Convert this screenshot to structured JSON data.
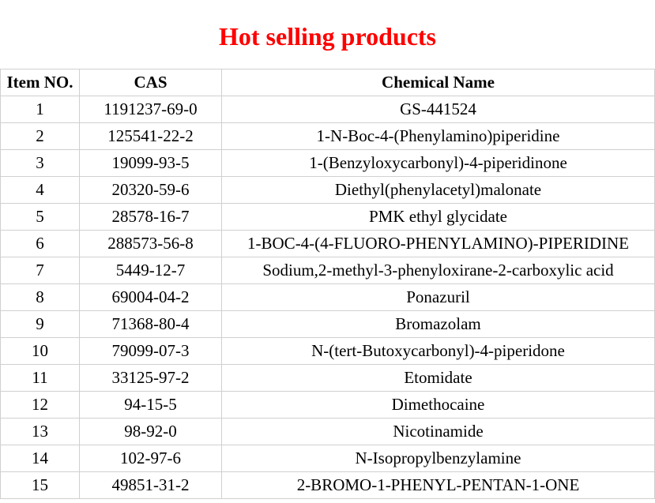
{
  "title": "Hot selling products",
  "title_color": "#ff0000",
  "title_fontsize": 32,
  "title_fontweight": "bold",
  "table": {
    "type": "table",
    "columns": [
      {
        "label": "Item NO.",
        "width": 100,
        "align": "center"
      },
      {
        "label": "CAS",
        "width": 180,
        "align": "center"
      },
      {
        "label": "Chemical Name",
        "width": "auto",
        "align": "center"
      }
    ],
    "rows": [
      {
        "item": "1",
        "cas": "1191237-69-0",
        "name": "GS-441524"
      },
      {
        "item": "2",
        "cas": "125541-22-2",
        "name": "1-N-Boc-4-(Phenylamino)piperidine"
      },
      {
        "item": "3",
        "cas": "19099-93-5",
        "name": "1-(Benzyloxycarbonyl)-4-piperidinone"
      },
      {
        "item": "4",
        "cas": "20320-59-6",
        "name": "Diethyl(phenylacetyl)malonate"
      },
      {
        "item": "5",
        "cas": "28578-16-7",
        "name": "PMK ethyl glycidate"
      },
      {
        "item": "6",
        "cas": "288573-56-8",
        "name": "1-BOC-4-(4-FLUORO-PHENYLAMINO)-PIPERIDINE"
      },
      {
        "item": "7",
        "cas": "5449-12-7",
        "name": "Sodium,2-methyl-3-phenyloxirane-2-carboxylic acid"
      },
      {
        "item": "8",
        "cas": "69004-04-2",
        "name": "Ponazuril"
      },
      {
        "item": "9",
        "cas": "71368-80-4",
        "name": "Bromazolam"
      },
      {
        "item": "10",
        "cas": "79099-07-3",
        "name": "N-(tert-Butoxycarbonyl)-4-piperidone"
      },
      {
        "item": "11",
        "cas": "33125-97-2",
        "name": "Etomidate"
      },
      {
        "item": "12",
        "cas": "94-15-5",
        "name": "Dimethocaine"
      },
      {
        "item": "13",
        "cas": "98-92-0",
        "name": "Nicotinamide"
      },
      {
        "item": "14",
        "cas": "102-97-6",
        "name": "N-Isopropylbenzylamine"
      },
      {
        "item": "15",
        "cas": "49851-31-2",
        "name": "2-BROMO-1-PHENYL-PENTAN-1-ONE"
      }
    ],
    "header_fontweight": "bold",
    "body_fontsize": 21,
    "border_color": "#d0d0d0",
    "background_color": "#ffffff",
    "text_color": "#000000",
    "font_family": "Times New Roman"
  }
}
